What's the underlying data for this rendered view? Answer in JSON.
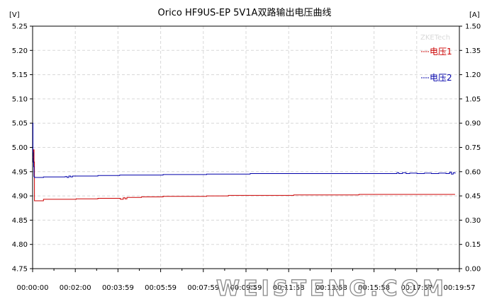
{
  "chart_data": {
    "type": "line",
    "title": "Orico HF9US-EP 5V1A双路输出电压曲线",
    "y_unit_left": "[V]",
    "y_unit_right": "[A]",
    "ylim_left": [
      4.75,
      5.25
    ],
    "ylim_right": [
      0.15,
      1.5
    ],
    "yticks_left": [
      "5.25",
      "5.20",
      "5.15",
      "5.10",
      "5.05",
      "5.00",
      "4.95",
      "4.90",
      "4.85",
      "4.80",
      "4.75"
    ],
    "yticks_right": [
      "1.50",
      "1.35",
      "1.20",
      "1.05",
      "0.90",
      "0.75",
      "0.60",
      "0.45",
      "0.30",
      "0.15",
      "0.00"
    ],
    "xlim_seconds": [
      0,
      1177
    ],
    "xticks": [
      "00:00:00",
      "00:02:00",
      "00:03:59",
      "00:05:59",
      "00:07:59",
      "00:09:59",
      "00:11:58",
      "00:13:58",
      "00:15:58",
      "00:17:57",
      "00:19:57"
    ],
    "grid": true,
    "legend_position": "right",
    "series": [
      {
        "name": "电压1",
        "color": "#cc0000",
        "x_seconds": [
          0,
          2,
          3,
          4,
          5,
          6,
          7,
          8,
          10,
          20,
          30,
          60,
          120,
          180,
          240,
          242,
          250,
          255,
          260,
          270,
          300,
          360,
          420,
          480,
          540,
          600,
          660,
          720,
          780,
          840,
          900,
          960,
          1020,
          1080,
          1140,
          1165
        ],
        "values": [
          4.98,
          4.97,
          4.995,
          4.97,
          4.89,
          4.89,
          4.89,
          4.89,
          4.89,
          4.89,
          4.893,
          4.893,
          4.894,
          4.895,
          4.895,
          4.893,
          4.896,
          4.894,
          4.897,
          4.897,
          4.898,
          4.899,
          4.899,
          4.9,
          4.901,
          4.901,
          4.901,
          4.902,
          4.902,
          4.902,
          4.903,
          4.903,
          4.903,
          4.903,
          4.903,
          4.903
        ]
      },
      {
        "name": "电压2",
        "color": "#0000aa",
        "x_seconds": [
          0,
          1,
          2,
          3,
          4,
          5,
          6,
          8,
          10,
          30,
          60,
          90,
          95,
          100,
          105,
          110,
          120,
          180,
          240,
          300,
          360,
          420,
          480,
          540,
          600,
          660,
          720,
          780,
          840,
          900,
          960,
          1000,
          1005,
          1010,
          1020,
          1030,
          1040,
          1060,
          1080,
          1100,
          1120,
          1140,
          1150,
          1155,
          1160,
          1165
        ],
        "values": [
          5.05,
          4.99,
          4.97,
          4.96,
          4.94,
          4.938,
          4.938,
          4.938,
          4.938,
          4.939,
          4.939,
          4.94,
          4.938,
          4.941,
          4.939,
          4.941,
          4.941,
          4.942,
          4.943,
          4.943,
          4.944,
          4.944,
          4.945,
          4.945,
          4.946,
          4.946,
          4.946,
          4.946,
          4.946,
          4.946,
          4.946,
          4.946,
          4.948,
          4.946,
          4.948,
          4.946,
          4.947,
          4.946,
          4.947,
          4.946,
          4.947,
          4.946,
          4.949,
          4.945,
          4.948,
          4.946
        ]
      }
    ]
  },
  "watermark_small": "ZKETech",
  "watermark_big": "WEISTENG.COM"
}
